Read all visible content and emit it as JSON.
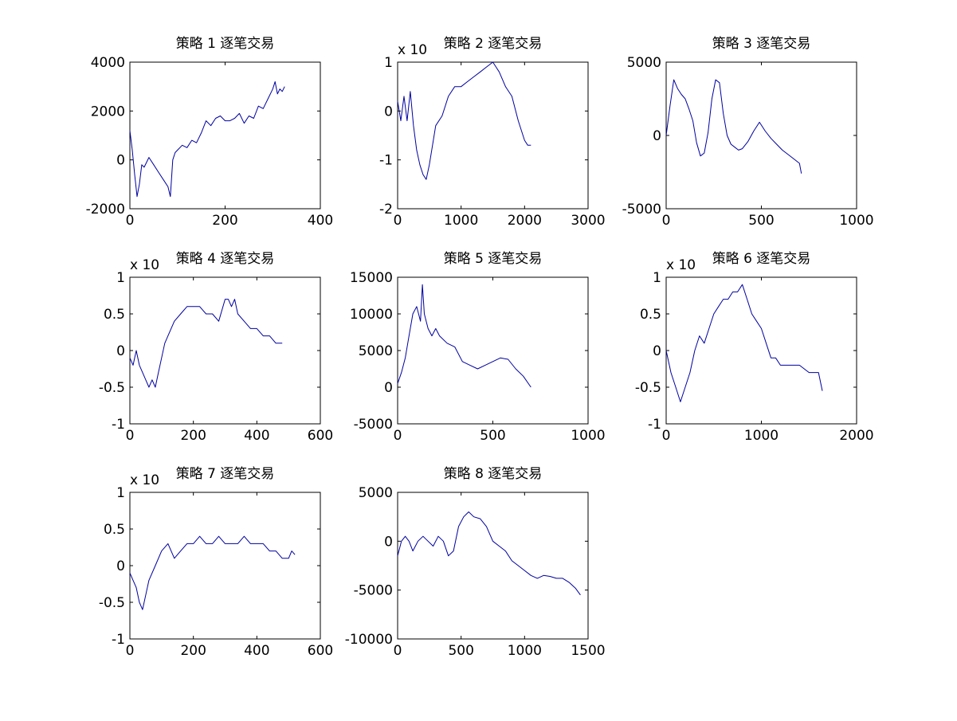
{
  "chart_data": [
    {
      "type": "line",
      "title": "策略 1 逐笔交易",
      "multiplier": "",
      "xlim": [
        0,
        400
      ],
      "ylim": [
        -2000,
        4000
      ],
      "xticks": [
        "0",
        "200",
        "400"
      ],
      "yticks": [
        "-2000",
        "0",
        "2000",
        "4000"
      ],
      "series": [
        {
          "color": "#0000a0",
          "x": [
            0,
            5,
            10,
            15,
            20,
            25,
            30,
            40,
            50,
            60,
            70,
            80,
            85,
            90,
            95,
            100,
            110,
            120,
            130,
            140,
            150,
            160,
            170,
            180,
            190,
            200,
            210,
            220,
            230,
            240,
            250,
            260,
            270,
            280,
            290,
            300,
            305,
            310,
            315,
            320,
            325
          ],
          "y": [
            1200,
            400,
            -600,
            -1500,
            -1000,
            -200,
            -300,
            100,
            -200,
            -500,
            -800,
            -1100,
            -1500,
            0,
            300,
            400,
            600,
            500,
            800,
            700,
            1100,
            1600,
            1400,
            1700,
            1800,
            1600,
            1600,
            1700,
            1900,
            1500,
            1800,
            1700,
            2200,
            2100,
            2500,
            2900,
            3200,
            2700,
            2900,
            2800,
            3000
          ]
        }
      ]
    },
    {
      "type": "line",
      "title": "策略 2 逐笔交易",
      "multiplier": "x 10",
      "xlim": [
        0,
        3000
      ],
      "ylim": [
        -2,
        1
      ],
      "xticks": [
        "0",
        "1000",
        "2000",
        "3000"
      ],
      "yticks": [
        "-2",
        "-1",
        "0",
        "1"
      ],
      "series": [
        {
          "color": "#0000a0",
          "x": [
            0,
            50,
            100,
            150,
            200,
            250,
            300,
            350,
            400,
            450,
            500,
            550,
            600,
            700,
            800,
            900,
            1000,
            1100,
            1200,
            1300,
            1400,
            1500,
            1550,
            1600,
            1700,
            1800,
            1900,
            2000,
            2050,
            2100
          ],
          "y": [
            0.2,
            -0.2,
            0.3,
            -0.2,
            0.4,
            -0.3,
            -0.8,
            -1.1,
            -1.3,
            -1.4,
            -1.1,
            -0.7,
            -0.3,
            -0.1,
            0.3,
            0.5,
            0.5,
            0.6,
            0.7,
            0.8,
            0.9,
            1.0,
            0.9,
            0.8,
            0.5,
            0.3,
            -0.2,
            -0.6,
            -0.7,
            -0.7
          ]
        }
      ]
    },
    {
      "type": "line",
      "title": "策略 3 逐笔交易",
      "multiplier": "",
      "xlim": [
        0,
        1000
      ],
      "ylim": [
        -5000,
        5000
      ],
      "xticks": [
        "0",
        "500",
        "1000"
      ],
      "yticks": [
        "-5000",
        "0",
        "5000"
      ],
      "series": [
        {
          "color": "#0000a0",
          "x": [
            0,
            20,
            40,
            60,
            80,
            100,
            120,
            140,
            160,
            180,
            200,
            220,
            240,
            260,
            280,
            300,
            320,
            340,
            360,
            380,
            400,
            430,
            460,
            490,
            520,
            550,
            580,
            610,
            640,
            670,
            700,
            710
          ],
          "y": [
            0,
            2000,
            3800,
            3200,
            2800,
            2500,
            1800,
            1000,
            -500,
            -1400,
            -1200,
            200,
            2500,
            3800,
            3600,
            1500,
            0,
            -600,
            -800,
            -1000,
            -900,
            -400,
            300,
            900,
            300,
            -200,
            -600,
            -1000,
            -1300,
            -1600,
            -1900,
            -2600
          ]
        }
      ]
    },
    {
      "type": "line",
      "title": "策略 4 逐笔交易",
      "multiplier": "x 10",
      "xlim": [
        0,
        600
      ],
      "ylim": [
        -1,
        1
      ],
      "xticks": [
        "0",
        "200",
        "400",
        "600"
      ],
      "yticks": [
        "-1",
        "-0.5",
        "0",
        "0.5",
        "1"
      ],
      "series": [
        {
          "color": "#0000a0",
          "x": [
            0,
            10,
            20,
            30,
            40,
            50,
            60,
            70,
            80,
            90,
            100,
            110,
            120,
            140,
            160,
            180,
            200,
            220,
            240,
            260,
            280,
            300,
            310,
            320,
            330,
            340,
            360,
            380,
            400,
            420,
            440,
            460,
            480
          ],
          "y": [
            -0.1,
            -0.2,
            0,
            -0.2,
            -0.3,
            -0.4,
            -0.5,
            -0.4,
            -0.5,
            -0.3,
            -0.1,
            0.1,
            0.2,
            0.4,
            0.5,
            0.6,
            0.6,
            0.6,
            0.5,
            0.5,
            0.4,
            0.7,
            0.7,
            0.6,
            0.7,
            0.5,
            0.4,
            0.3,
            0.3,
            0.2,
            0.2,
            0.1,
            0.1
          ]
        }
      ]
    },
    {
      "type": "line",
      "title": "策略 5 逐笔交易",
      "multiplier": "",
      "xlim": [
        0,
        1000
      ],
      "ylim": [
        -5000,
        15000
      ],
      "xticks": [
        "0",
        "500",
        "1000"
      ],
      "yticks": [
        "-5000",
        "0",
        "5000",
        "10000",
        "15000"
      ],
      "series": [
        {
          "color": "#0000a0",
          "x": [
            0,
            20,
            40,
            60,
            80,
            100,
            120,
            130,
            140,
            160,
            180,
            200,
            220,
            260,
            300,
            340,
            380,
            420,
            460,
            500,
            540,
            580,
            620,
            660,
            700
          ],
          "y": [
            500,
            2000,
            4000,
            7000,
            10000,
            11000,
            9000,
            14000,
            10000,
            8000,
            7000,
            8000,
            7000,
            6000,
            5500,
            3500,
            3000,
            2500,
            3000,
            3500,
            4000,
            3800,
            2500,
            1500,
            0
          ]
        }
      ]
    },
    {
      "type": "line",
      "title": "策略 6 逐笔交易",
      "multiplier": "x 10",
      "xlim": [
        0,
        2000
      ],
      "ylim": [
        -1,
        1
      ],
      "xticks": [
        "0",
        "1000",
        "2000"
      ],
      "yticks": [
        "-1",
        "-0.5",
        "0",
        "0.5",
        "1"
      ],
      "series": [
        {
          "color": "#0000a0",
          "x": [
            0,
            50,
            100,
            150,
            200,
            250,
            300,
            350,
            400,
            450,
            500,
            550,
            600,
            650,
            700,
            750,
            800,
            850,
            900,
            950,
            1000,
            1050,
            1100,
            1150,
            1200,
            1300,
            1400,
            1500,
            1600,
            1640
          ],
          "y": [
            0,
            -0.3,
            -0.5,
            -0.7,
            -0.5,
            -0.3,
            0,
            0.2,
            0.1,
            0.3,
            0.5,
            0.6,
            0.7,
            0.7,
            0.8,
            0.8,
            0.9,
            0.7,
            0.5,
            0.4,
            0.3,
            0.1,
            -0.1,
            -0.1,
            -0.2,
            -0.2,
            -0.2,
            -0.3,
            -0.3,
            -0.55
          ]
        }
      ]
    },
    {
      "type": "line",
      "title": "策略 7 逐笔交易",
      "multiplier": "x 10",
      "xlim": [
        0,
        600
      ],
      "ylim": [
        -1,
        1
      ],
      "xticks": [
        "0",
        "200",
        "400",
        "600"
      ],
      "yticks": [
        "-1",
        "-0.5",
        "0",
        "0.5",
        "1"
      ],
      "series": [
        {
          "color": "#0000a0",
          "x": [
            0,
            10,
            20,
            30,
            40,
            50,
            60,
            80,
            100,
            120,
            140,
            160,
            180,
            200,
            220,
            240,
            260,
            280,
            300,
            320,
            340,
            360,
            380,
            400,
            420,
            440,
            460,
            480,
            500,
            510,
            520
          ],
          "y": [
            -0.1,
            -0.2,
            -0.3,
            -0.5,
            -0.6,
            -0.4,
            -0.2,
            0,
            0.2,
            0.3,
            0.1,
            0.2,
            0.3,
            0.3,
            0.4,
            0.3,
            0.3,
            0.4,
            0.3,
            0.3,
            0.3,
            0.4,
            0.3,
            0.3,
            0.3,
            0.2,
            0.2,
            0.1,
            0.1,
            0.2,
            0.15
          ]
        }
      ]
    },
    {
      "type": "line",
      "title": "策略 8 逐笔交易",
      "multiplier": "",
      "xlim": [
        0,
        1500
      ],
      "ylim": [
        -10000,
        5000
      ],
      "xticks": [
        "0",
        "500",
        "1000",
        "1500"
      ],
      "yticks": [
        "-10000",
        "-5000",
        "0",
        "5000"
      ],
      "series": [
        {
          "color": "#0000a0",
          "x": [
            0,
            30,
            60,
            90,
            120,
            160,
            200,
            240,
            280,
            320,
            360,
            400,
            440,
            480,
            520,
            560,
            600,
            650,
            700,
            750,
            800,
            850,
            900,
            950,
            1000,
            1050,
            1100,
            1150,
            1200,
            1250,
            1300,
            1350,
            1400,
            1440
          ],
          "y": [
            -1500,
            0,
            500,
            0,
            -1000,
            0,
            500,
            0,
            -500,
            500,
            0,
            -1500,
            -1000,
            1500,
            2500,
            3000,
            2500,
            2300,
            1500,
            0,
            -500,
            -1000,
            -2000,
            -2500,
            -3000,
            -3500,
            -3800,
            -3500,
            -3600,
            -3800,
            -3800,
            -4200,
            -4800,
            -5500
          ]
        }
      ]
    }
  ]
}
